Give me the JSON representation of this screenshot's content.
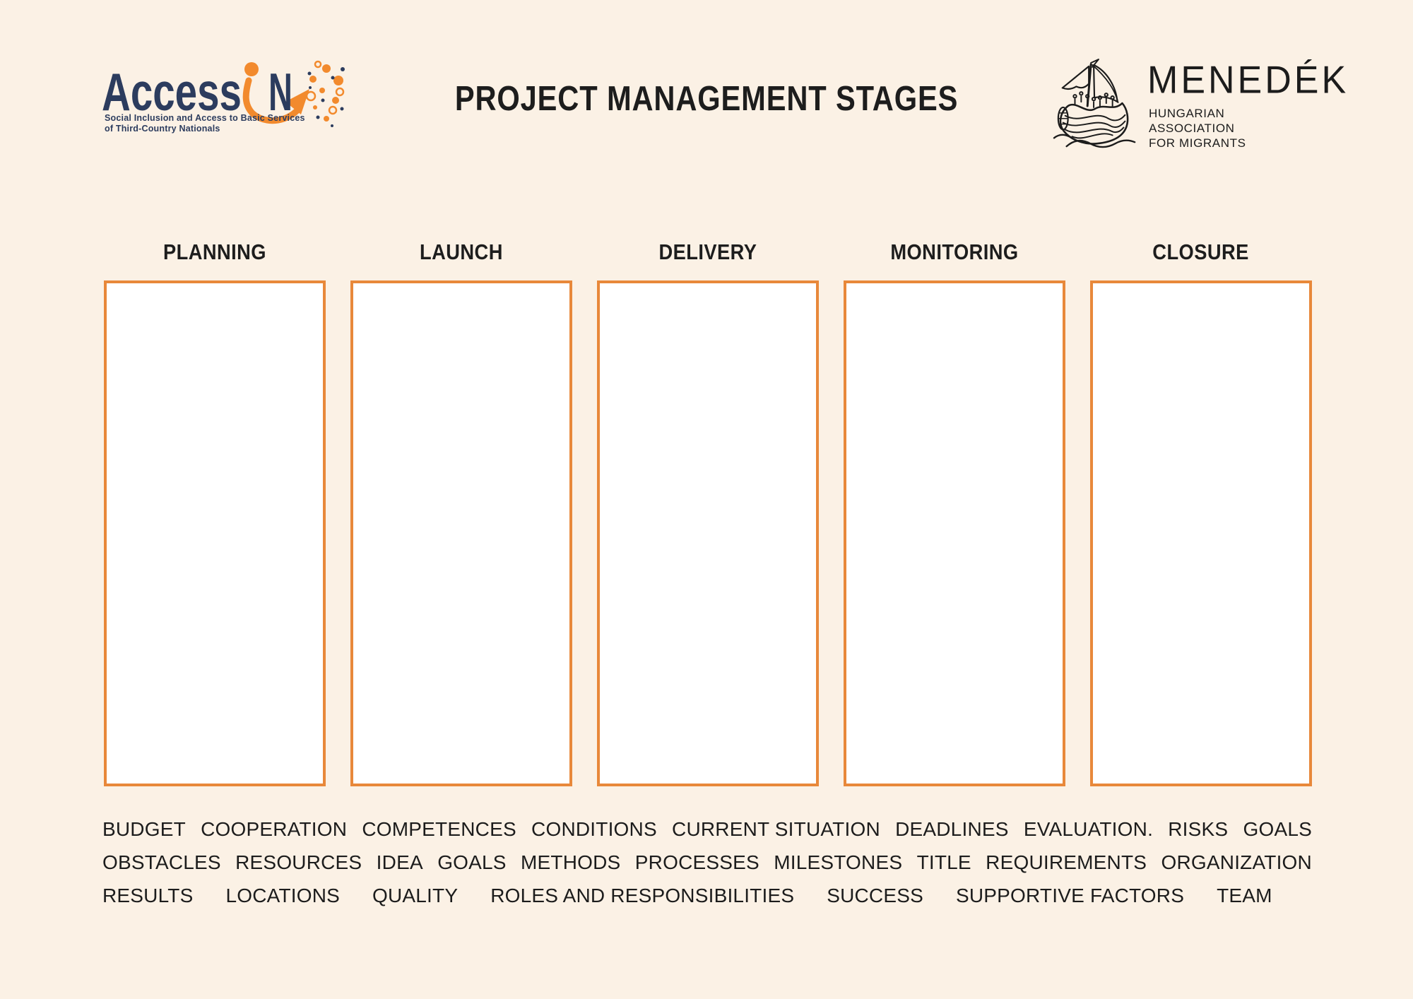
{
  "page": {
    "title": "PROJECT MANAGEMENT STAGES",
    "background_color": "#FBF1E5",
    "text_color": "#1D1D1D",
    "accent_orange": "#E8883A",
    "box_fill": "#FFFFFF"
  },
  "header": {
    "accessin_logo": {
      "wordmark_part1": "Access",
      "wordmark_part2": "N",
      "tagline_line1": "Social Inclusion and Access to Basic Services",
      "tagline_line2": "of Third-Country Nationals",
      "navy": "#2C3C5E",
      "orange": "#F28A2D"
    },
    "menedek_logo": {
      "wordmark": "MENEDÉK",
      "subtitle_line1": "HUNGARIAN",
      "subtitle_line2": "ASSOCIATION",
      "subtitle_line3": "FOR MIGRANTS"
    }
  },
  "stages": [
    {
      "label": "PLANNING"
    },
    {
      "label": "LAUNCH"
    },
    {
      "label": "DELIVERY"
    },
    {
      "label": "MONITORING"
    },
    {
      "label": "CLOSURE"
    }
  ],
  "word_bank": {
    "line1": [
      "BUDGET",
      "COOPERATION",
      "COMPETENCES",
      "CONDITIONS",
      "CURRENT SITUATION",
      "DEADLINES",
      "EVALUATION.",
      "RISKS",
      "GOALS"
    ],
    "line2": [
      "OBSTACLES",
      "RESOURCES",
      "IDEA",
      "GOALS",
      "METHODS",
      "PROCESSES",
      "MILESTONES",
      "TITLE",
      "REQUIREMENTS",
      "ORGANIZATION"
    ],
    "line3": [
      "RESULTS",
      "LOCATIONS",
      "QUALITY",
      "ROLES AND RESPONSIBILITIES",
      "SUCCESS",
      "SUPPORTIVE FACTORS",
      "TEAM"
    ]
  }
}
